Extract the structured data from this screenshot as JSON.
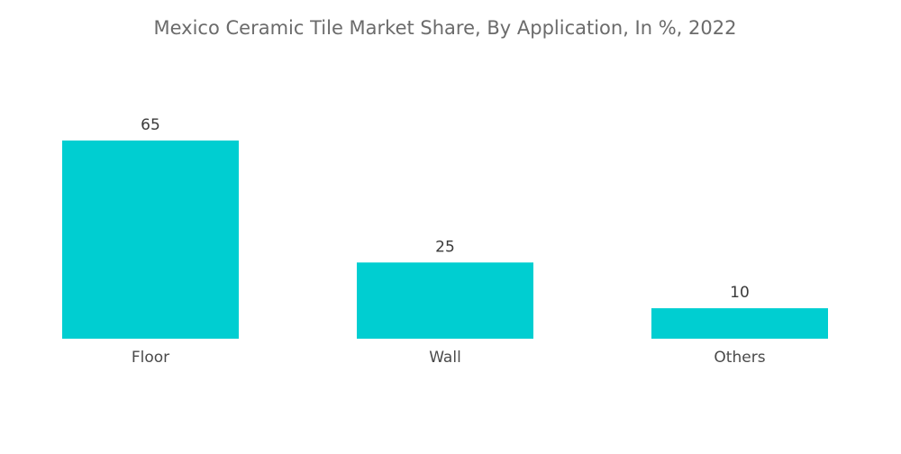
{
  "chart_data": {
    "type": "bar",
    "title": "Mexico Ceramic Tile Market Share, By Application, In %, 2022",
    "categories": [
      "Floor",
      "Wall",
      "Others"
    ],
    "values": [
      65,
      25,
      10
    ],
    "value_labels": [
      "65",
      "25",
      "10"
    ],
    "xlabel": "",
    "ylabel": "",
    "ylim": [
      0,
      65
    ],
    "grid": false,
    "legend": "none",
    "bar_color": "#00CED1"
  }
}
